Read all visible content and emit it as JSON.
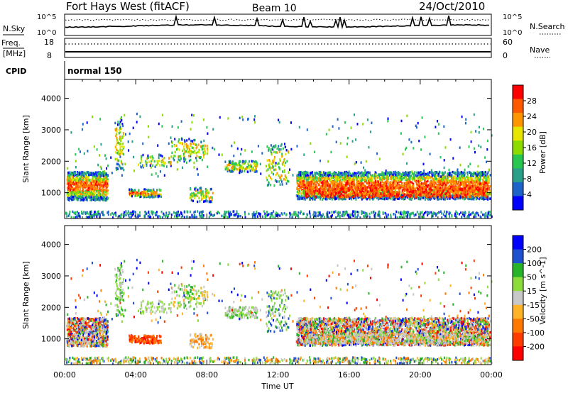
{
  "header": {
    "station": "Fort Hays West (fitACF)",
    "beam": "Beam 10",
    "date": "24/Oct/2010"
  },
  "noise_panel": {
    "left_label": "N.Sky",
    "right_label": "N.Search",
    "left_ticks": [
      "10^5",
      "10^0"
    ],
    "right_ticks": [
      "10^5",
      "10^0"
    ]
  },
  "freq_panel": {
    "left_label_1": "Freq.",
    "left_label_2": "[MHz]",
    "left_ticks": [
      "18",
      "8"
    ],
    "right_label": "Nave",
    "right_ticks": [
      "60",
      "0"
    ]
  },
  "cpid": {
    "label": "CPID",
    "mode": "normal 150"
  },
  "chart_data": [
    {
      "type": "heatmap",
      "name": "power",
      "ylabel": "Slant Range [km]",
      "xlabel": "",
      "x_ticks": [
        "00:00",
        "04:00",
        "08:00",
        "12:00",
        "16:00",
        "20:00",
        "00:00"
      ],
      "y_ticks": [
        1000,
        2000,
        3000,
        4000
      ],
      "ylim": [
        180,
        4600
      ],
      "xlim_hours": [
        0,
        24
      ],
      "colorbar": {
        "label": "Power [dB]",
        "ticks": [
          "28",
          "24",
          "20",
          "16",
          "12",
          "8",
          "4"
        ],
        "colors": [
          "#ff0000",
          "#ff5a00",
          "#ff9600",
          "#e6e600",
          "#8cdc00",
          "#28c850",
          "#2aa08a",
          "#1e64c8",
          "#0000ff"
        ]
      },
      "regions": [
        {
          "t": [
            0.2,
            2.5
          ],
          "r": [
            700,
            1700
          ],
          "strength": "strong"
        },
        {
          "t": [
            3.5,
            5.5
          ],
          "r": [
            850,
            1100
          ],
          "strength": "strong"
        },
        {
          "t": [
            7.0,
            8.2
          ],
          "r": [
            800,
            1100
          ],
          "strength": "medium"
        },
        {
          "t": [
            9.0,
            10.8
          ],
          "r": [
            1700,
            2000
          ],
          "strength": "weak"
        },
        {
          "t": [
            13.0,
            23.9
          ],
          "r": [
            750,
            1700
          ],
          "strength": "strong"
        },
        {
          "t": [
            0,
            24
          ],
          "r": [
            200,
            400
          ],
          "strength": "weak"
        }
      ]
    },
    {
      "type": "heatmap",
      "name": "velocity",
      "ylabel": "Slant Range [km]",
      "xlabel": "Time UT",
      "x_ticks": [
        "00:00",
        "04:00",
        "08:00",
        "12:00",
        "16:00",
        "20:00",
        "00:00"
      ],
      "y_ticks": [
        1000,
        2000,
        3000,
        4000
      ],
      "ylim": [
        180,
        4600
      ],
      "xlim_hours": [
        0,
        24
      ],
      "colorbar": {
        "label": "Velocity [m s^-1]",
        "ticks": [
          "200",
          "100",
          "50",
          "15",
          "-15",
          "-50",
          "-100",
          "-200"
        ],
        "colors": [
          "#0000ff",
          "#1e50d0",
          "#28b428",
          "#8cdc3c",
          "#c8c8c8",
          "#ffb428",
          "#ff7800",
          "#ff3c00",
          "#ff0000"
        ]
      }
    }
  ]
}
